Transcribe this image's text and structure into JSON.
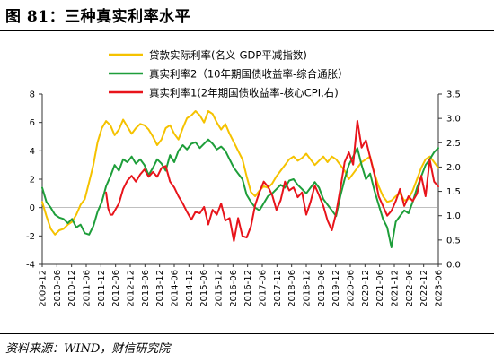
{
  "figure": {
    "title": "图 81：三种真实利率水平",
    "source": "资料来源：WIND，财信研究院"
  },
  "chart_data": {
    "type": "line",
    "x_tick_labels": [
      "2009-12",
      "2010-06",
      "2010-12",
      "2011-06",
      "2011-12",
      "2012-06",
      "2012-12",
      "2013-06",
      "2013-12",
      "2014-06",
      "2014-12",
      "2015-06",
      "2015-12",
      "2016-06",
      "2016-12",
      "2017-06",
      "2017-12",
      "2018-06",
      "2018-12",
      "2019-06",
      "2019-12",
      "2020-06",
      "2020-12",
      "2021-06",
      "2021-12",
      "2022-06",
      "2022-12",
      "2023-06"
    ],
    "y_left": {
      "lim": [
        -4,
        8
      ],
      "ticks": [
        "-4",
        "-2",
        "0",
        "2",
        "4",
        "6",
        "8"
      ]
    },
    "y_right": {
      "lim": [
        0.0,
        3.5
      ],
      "ticks": [
        "0.0",
        "0.5",
        "1.0",
        "1.5",
        "2.0",
        "2.5",
        "3.0",
        "3.5"
      ]
    },
    "legend_position": "top-center",
    "series": [
      {
        "name": "贷款实际利率(名义-GDP平减指数)",
        "color": "#F5C200",
        "axis": "left",
        "points": [
          [
            0,
            0.4
          ],
          [
            1,
            -0.6
          ],
          [
            2,
            -1.5
          ],
          [
            3,
            -1.9
          ],
          [
            4,
            -1.6
          ],
          [
            5,
            -1.5
          ],
          [
            6,
            -1.2
          ],
          [
            7,
            -1.0
          ],
          [
            8,
            -0.5
          ],
          [
            9,
            0.2
          ],
          [
            10,
            0.6
          ],
          [
            11,
            1.8
          ],
          [
            12,
            3.0
          ],
          [
            13,
            4.6
          ],
          [
            14,
            5.6
          ],
          [
            15,
            6.1
          ],
          [
            16,
            5.8
          ],
          [
            17,
            5.1
          ],
          [
            18,
            5.5
          ],
          [
            19,
            6.2
          ],
          [
            20,
            5.7
          ],
          [
            21,
            5.2
          ],
          [
            22,
            5.6
          ],
          [
            23,
            5.9
          ],
          [
            24,
            5.8
          ],
          [
            25,
            5.5
          ],
          [
            26,
            5.0
          ],
          [
            27,
            4.4
          ],
          [
            28,
            4.8
          ],
          [
            29,
            5.6
          ],
          [
            30,
            5.8
          ],
          [
            31,
            5.2
          ],
          [
            32,
            4.8
          ],
          [
            33,
            5.6
          ],
          [
            34,
            6.3
          ],
          [
            35,
            6.5
          ],
          [
            36,
            6.8
          ],
          [
            37,
            6.5
          ],
          [
            38,
            6.0
          ],
          [
            39,
            6.8
          ],
          [
            40,
            6.6
          ],
          [
            41,
            6.0
          ],
          [
            42,
            5.5
          ],
          [
            43,
            5.9
          ],
          [
            44,
            5.2
          ],
          [
            45,
            4.6
          ],
          [
            46,
            4.0
          ],
          [
            47,
            3.4
          ],
          [
            48,
            2.2
          ],
          [
            49,
            1.1
          ],
          [
            50,
            0.8
          ],
          [
            51,
            1.2
          ],
          [
            52,
            1.5
          ],
          [
            53,
            1.4
          ],
          [
            54,
            1.7
          ],
          [
            55,
            2.2
          ],
          [
            56,
            2.6
          ],
          [
            57,
            3.0
          ],
          [
            58,
            3.4
          ],
          [
            59,
            3.6
          ],
          [
            60,
            3.3
          ],
          [
            61,
            3.5
          ],
          [
            62,
            3.8
          ],
          [
            63,
            3.4
          ],
          [
            64,
            3.0
          ],
          [
            65,
            3.3
          ],
          [
            66,
            3.6
          ],
          [
            67,
            3.2
          ],
          [
            68,
            3.6
          ],
          [
            69,
            3.4
          ],
          [
            70,
            3.0
          ],
          [
            71,
            2.6
          ],
          [
            72,
            2.0
          ],
          [
            73,
            2.4
          ],
          [
            74,
            2.8
          ],
          [
            75,
            3.2
          ],
          [
            76,
            3.4
          ],
          [
            77,
            3.6
          ],
          [
            78,
            2.4
          ],
          [
            79,
            1.5
          ],
          [
            80,
            0.8
          ],
          [
            81,
            0.4
          ],
          [
            82,
            0.5
          ],
          [
            83,
            0.8
          ],
          [
            84,
            1.0
          ],
          [
            85,
            0.5
          ],
          [
            86,
            0.6
          ],
          [
            87,
            1.2
          ],
          [
            88,
            2.0
          ],
          [
            89,
            2.8
          ],
          [
            90,
            3.4
          ],
          [
            91,
            3.6
          ],
          [
            92,
            3.2
          ],
          [
            93,
            2.8
          ]
        ]
      },
      {
        "name": "真实利率2（10年期国债收益率-综合通胀）",
        "color": "#1E9E3A",
        "axis": "left",
        "points": [
          [
            0,
            1.4
          ],
          [
            1,
            0.4
          ],
          [
            2,
            0.0
          ],
          [
            3,
            -0.5
          ],
          [
            4,
            -0.7
          ],
          [
            5,
            -0.8
          ],
          [
            6,
            -1.1
          ],
          [
            7,
            -0.8
          ],
          [
            8,
            -1.4
          ],
          [
            9,
            -1.2
          ],
          [
            10,
            -1.8
          ],
          [
            11,
            -1.9
          ],
          [
            12,
            -1.3
          ],
          [
            13,
            -0.3
          ],
          [
            14,
            0.4
          ],
          [
            15,
            1.5
          ],
          [
            16,
            2.2
          ],
          [
            17,
            3.0
          ],
          [
            18,
            2.6
          ],
          [
            19,
            3.4
          ],
          [
            20,
            3.2
          ],
          [
            21,
            3.6
          ],
          [
            22,
            3.1
          ],
          [
            23,
            3.4
          ],
          [
            24,
            3.0
          ],
          [
            25,
            2.3
          ],
          [
            26,
            2.8
          ],
          [
            27,
            3.4
          ],
          [
            28,
            3.1
          ],
          [
            29,
            2.6
          ],
          [
            30,
            3.7
          ],
          [
            31,
            3.2
          ],
          [
            32,
            4.0
          ],
          [
            33,
            4.4
          ],
          [
            34,
            4.1
          ],
          [
            35,
            4.5
          ],
          [
            36,
            4.6
          ],
          [
            37,
            4.2
          ],
          [
            38,
            4.5
          ],
          [
            39,
            4.8
          ],
          [
            40,
            4.5
          ],
          [
            41,
            4.1
          ],
          [
            42,
            4.3
          ],
          [
            43,
            4.0
          ],
          [
            44,
            3.4
          ],
          [
            45,
            2.8
          ],
          [
            46,
            2.4
          ],
          [
            47,
            2.0
          ],
          [
            48,
            0.9
          ],
          [
            49,
            0.4
          ],
          [
            50,
            0.0
          ],
          [
            51,
            -0.2
          ],
          [
            52,
            0.3
          ],
          [
            53,
            0.8
          ],
          [
            54,
            1.0
          ],
          [
            55,
            1.3
          ],
          [
            56,
            1.6
          ],
          [
            57,
            1.4
          ],
          [
            58,
            1.9
          ],
          [
            59,
            2.0
          ],
          [
            60,
            1.6
          ],
          [
            61,
            1.3
          ],
          [
            62,
            1.0
          ],
          [
            63,
            1.4
          ],
          [
            64,
            1.8
          ],
          [
            65,
            1.4
          ],
          [
            66,
            0.6
          ],
          [
            67,
            0.2
          ],
          [
            68,
            -0.2
          ],
          [
            69,
            -0.6
          ],
          [
            70,
            0.8
          ],
          [
            71,
            2.0
          ],
          [
            72,
            3.0
          ],
          [
            73,
            3.6
          ],
          [
            74,
            4.2
          ],
          [
            75,
            3.0
          ],
          [
            76,
            2.0
          ],
          [
            77,
            2.4
          ],
          [
            78,
            1.2
          ],
          [
            79,
            0.2
          ],
          [
            80,
            -0.8
          ],
          [
            81,
            -1.4
          ],
          [
            82,
            -2.8
          ],
          [
            83,
            -1.0
          ],
          [
            84,
            -0.6
          ],
          [
            85,
            -0.2
          ],
          [
            86,
            -0.4
          ],
          [
            87,
            0.4
          ],
          [
            88,
            1.4
          ],
          [
            89,
            2.2
          ],
          [
            90,
            3.0
          ],
          [
            91,
            3.4
          ],
          [
            92,
            3.9
          ],
          [
            93,
            4.2
          ]
        ]
      },
      {
        "name": "真实利率1(2年期国债收益率-核心CPI,右)",
        "color": "#E8141B",
        "axis": "right",
        "points": [
          [
            15,
            1.48
          ],
          [
            15.5,
            1.15
          ],
          [
            16,
            1.02
          ],
          [
            16.5,
            1.02
          ],
          [
            17,
            1.1
          ],
          [
            18,
            1.25
          ],
          [
            19,
            1.55
          ],
          [
            20,
            1.72
          ],
          [
            21,
            1.82
          ],
          [
            22,
            1.7
          ],
          [
            23,
            1.85
          ],
          [
            24,
            1.95
          ],
          [
            25,
            1.8
          ],
          [
            26,
            1.9
          ],
          [
            27,
            1.8
          ],
          [
            28,
            1.98
          ],
          [
            29,
            2.02
          ],
          [
            30,
            1.7
          ],
          [
            31,
            1.58
          ],
          [
            32,
            1.4
          ],
          [
            33,
            1.25
          ],
          [
            34,
            1.08
          ],
          [
            35,
            0.92
          ],
          [
            36,
            1.08
          ],
          [
            37,
            1.05
          ],
          [
            38,
            1.18
          ],
          [
            39,
            0.82
          ],
          [
            40,
            1.12
          ],
          [
            41,
            1.02
          ],
          [
            42,
            1.25
          ],
          [
            43,
            0.9
          ],
          [
            44,
            0.95
          ],
          [
            45,
            0.48
          ],
          [
            46,
            0.95
          ],
          [
            47,
            0.58
          ],
          [
            48,
            0.55
          ],
          [
            49,
            0.78
          ],
          [
            50,
            1.22
          ],
          [
            51,
            1.48
          ],
          [
            52,
            1.7
          ],
          [
            53,
            1.6
          ],
          [
            54,
            1.42
          ],
          [
            55,
            1.12
          ],
          [
            56,
            1.32
          ],
          [
            57,
            1.7
          ],
          [
            58,
            1.52
          ],
          [
            59,
            1.58
          ],
          [
            60,
            1.38
          ],
          [
            61,
            1.48
          ],
          [
            62,
            1.02
          ],
          [
            63,
            1.28
          ],
          [
            64,
            1.62
          ],
          [
            65,
            1.42
          ],
          [
            66,
            1.2
          ],
          [
            67,
            0.9
          ],
          [
            68,
            0.7
          ],
          [
            69,
            1.05
          ],
          [
            70,
            1.55
          ],
          [
            71,
            2.1
          ],
          [
            72,
            2.3
          ],
          [
            73,
            2.05
          ],
          [
            74,
            2.95
          ],
          [
            75,
            2.4
          ],
          [
            76,
            2.55
          ],
          [
            77,
            2.2
          ],
          [
            78,
            1.85
          ],
          [
            79,
            1.4
          ],
          [
            80,
            1.2
          ],
          [
            81,
            1.0
          ],
          [
            82,
            1.1
          ],
          [
            83,
            1.3
          ],
          [
            84,
            1.55
          ],
          [
            85,
            1.2
          ],
          [
            86,
            1.4
          ],
          [
            87,
            1.3
          ],
          [
            88,
            1.45
          ],
          [
            89,
            1.82
          ],
          [
            90,
            1.4
          ],
          [
            91,
            2.15
          ],
          [
            92,
            1.7
          ],
          [
            93,
            1.6
          ]
        ]
      }
    ]
  }
}
